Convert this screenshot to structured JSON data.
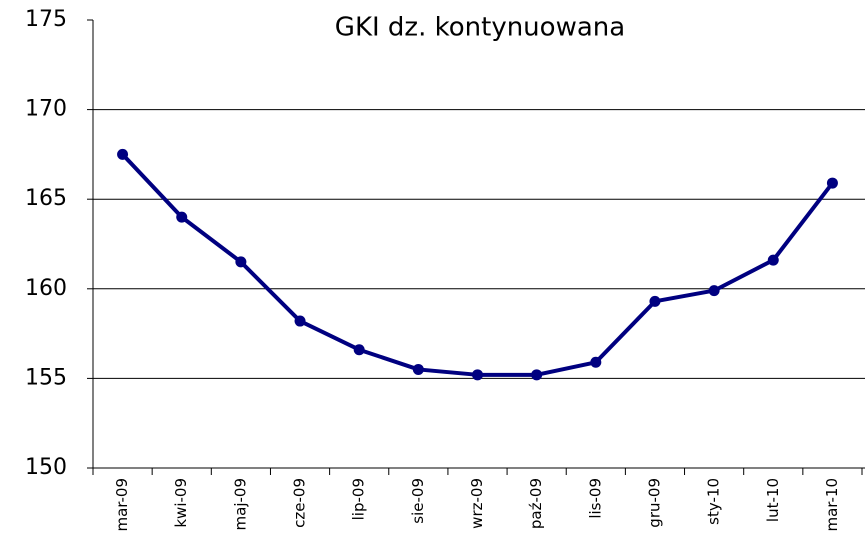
{
  "chart_data": {
    "type": "line",
    "title": "GKI dz. kontynuowana",
    "categories": [
      "mar-09",
      "kwi-09",
      "maj-09",
      "cze-09",
      "lip-09",
      "sie-09",
      "wrz-09",
      "paź-09",
      "lis-09",
      "gru-09",
      "sty-10",
      "lut-10",
      "mar-10"
    ],
    "series": [
      {
        "name": "GKI dz. kontynuowana",
        "color": "#000080",
        "values": [
          167.5,
          164.0,
          161.5,
          158.2,
          156.6,
          155.5,
          155.2,
          155.2,
          155.9,
          159.3,
          159.9,
          161.6,
          165.9
        ]
      }
    ],
    "ylim": [
      150,
      175
    ],
    "yticks": [
      150,
      155,
      160,
      165,
      170,
      175
    ],
    "grid": true
  }
}
